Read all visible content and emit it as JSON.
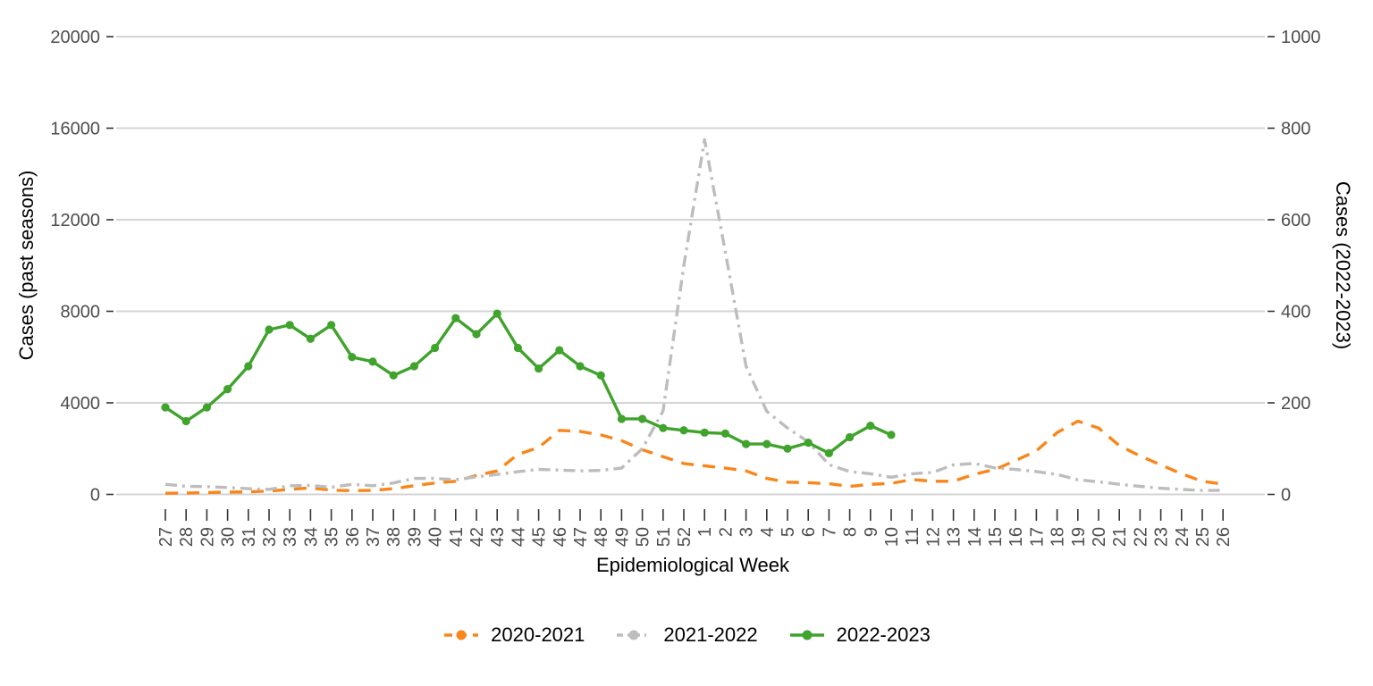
{
  "chart_data": {
    "type": "line",
    "title": "",
    "xlabel": "Epidemiological Week",
    "ylabel_left": "Cases (past seasons)",
    "ylabel_right": "Cases (2022-2023)",
    "ylim_left": [
      0,
      20000
    ],
    "ylim_right": [
      0,
      1000
    ],
    "left_axis_ticks": [
      0,
      4000,
      8000,
      12000,
      16000,
      20000
    ],
    "right_axis_ticks": [
      0,
      200,
      400,
      600,
      800,
      1000
    ],
    "grid": "horizontal-only",
    "legend_position": "bottom",
    "x": [
      "27",
      "28",
      "29",
      "30",
      "31",
      "32",
      "33",
      "34",
      "35",
      "36",
      "37",
      "38",
      "39",
      "40",
      "41",
      "42",
      "43",
      "44",
      "45",
      "46",
      "47",
      "48",
      "49",
      "50",
      "51",
      "52",
      "1",
      "2",
      "3",
      "4",
      "5",
      "6",
      "7",
      "8",
      "9",
      "10",
      "11",
      "12",
      "13",
      "14",
      "15",
      "16",
      "17",
      "18",
      "19",
      "20",
      "21",
      "22",
      "23",
      "24",
      "25",
      "26"
    ],
    "series": [
      {
        "name": "2020-2021",
        "axis": "left",
        "color": "#F8861A",
        "linestyle": "dashed",
        "values": [
          50,
          60,
          80,
          100,
          110,
          150,
          220,
          285,
          185,
          165,
          175,
          250,
          380,
          500,
          575,
          830,
          1025,
          1750,
          2050,
          2800,
          2750,
          2600,
          2350,
          1950,
          1650,
          1350,
          1250,
          1150,
          1025,
          700,
          535,
          510,
          470,
          350,
          440,
          480,
          650,
          575,
          575,
          880,
          1090,
          1480,
          1900,
          2700,
          3200,
          2900,
          2130,
          1680,
          1290,
          900,
          575,
          450
        ]
      },
      {
        "name": "2021-2022",
        "axis": "left",
        "color": "#BDBDBD",
        "linestyle": "dashdot",
        "values": [
          440,
          350,
          340,
          300,
          250,
          220,
          380,
          390,
          310,
          440,
          380,
          500,
          700,
          700,
          640,
          770,
          870,
          990,
          1090,
          1065,
          1025,
          1050,
          1150,
          2000,
          3650,
          10000,
          15500,
          10600,
          5600,
          3630,
          2900,
          2300,
          1300,
          1000,
          900,
          750,
          900,
          960,
          1290,
          1350,
          1160,
          1090,
          1000,
          870,
          640,
          550,
          440,
          350,
          270,
          220,
          170,
          180
        ]
      },
      {
        "name": "2022-2023",
        "axis": "right",
        "color": "#3FA32C",
        "linestyle": "solid",
        "markers": true,
        "values": [
          190,
          160,
          190,
          230,
          280,
          360,
          370,
          340,
          370,
          300,
          290,
          260,
          280,
          320,
          385,
          350,
          395,
          320,
          275,
          315,
          280,
          260,
          165,
          165,
          145,
          140,
          135,
          133,
          110,
          110,
          100,
          113,
          90,
          125,
          150,
          130,
          null,
          null,
          null,
          null,
          null,
          null,
          null,
          null,
          null,
          null,
          null,
          null,
          null,
          null,
          null,
          null
        ]
      }
    ]
  },
  "style_colors": {
    "gridline": "#D4D4D4",
    "tick_mark": "#333333",
    "tick_label": "#4D4D4D",
    "axis_title": "#000000"
  }
}
